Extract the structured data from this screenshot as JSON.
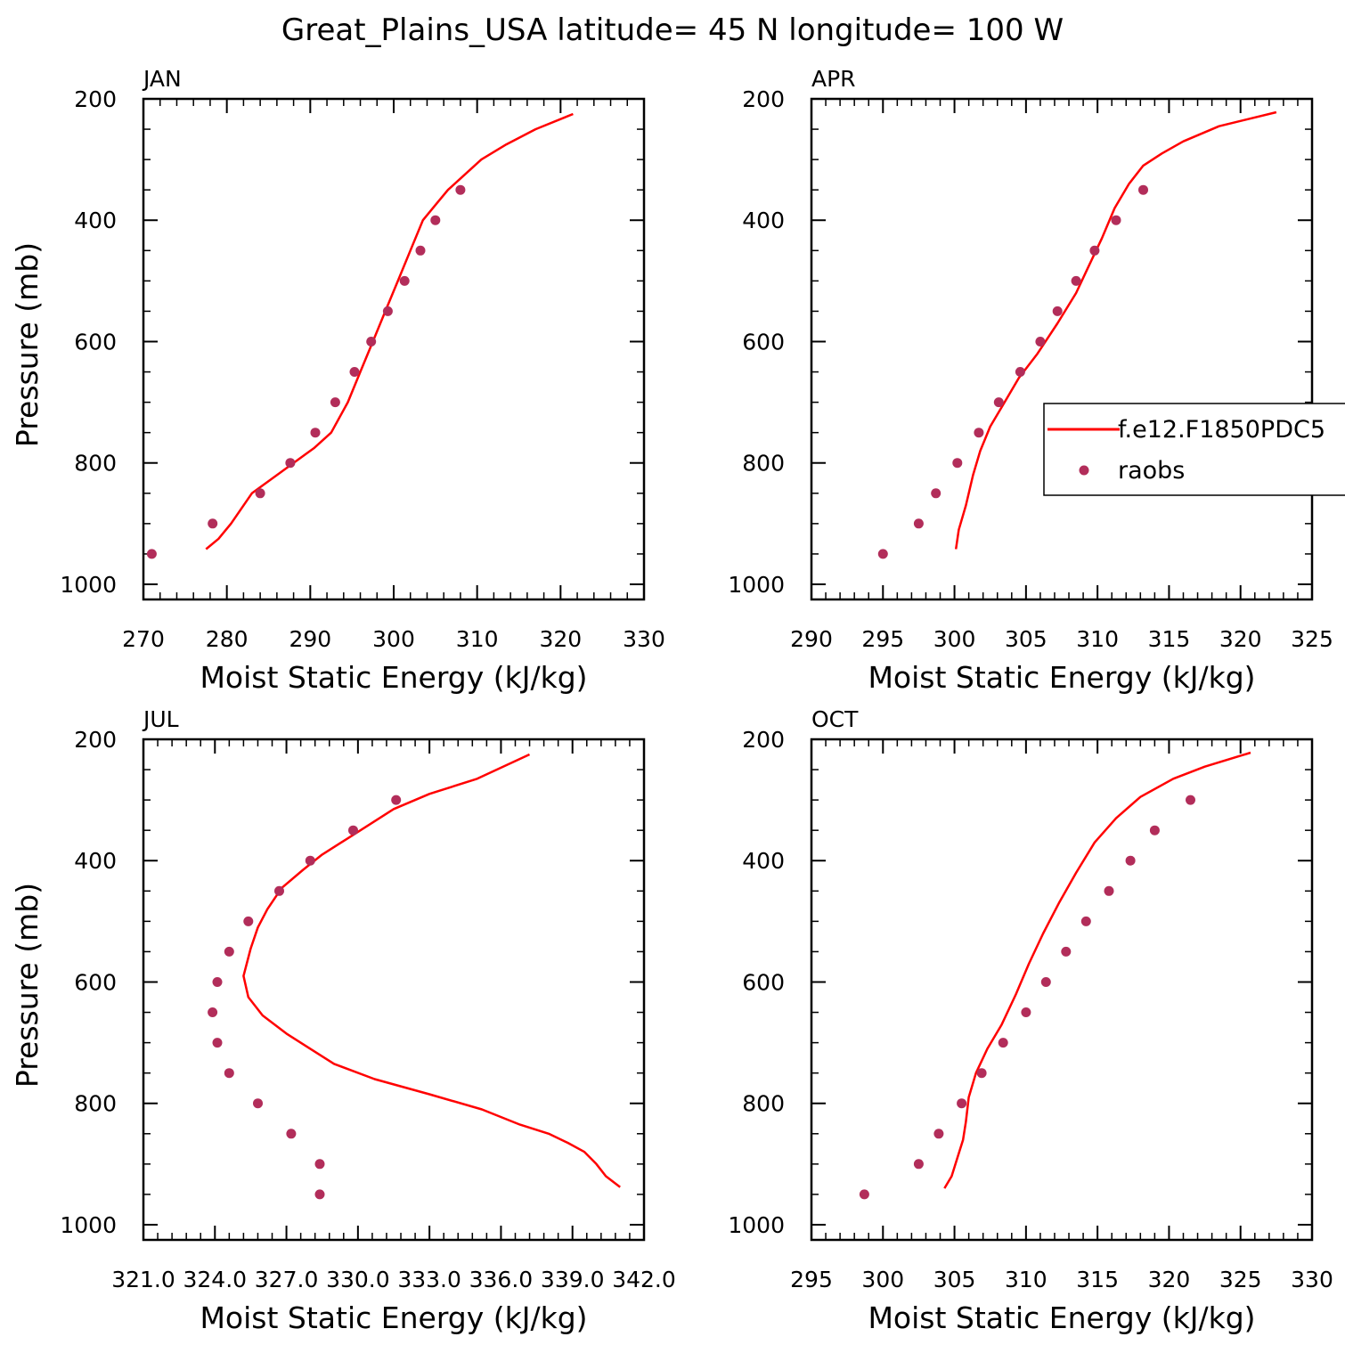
{
  "title": "Great_Plains_USA  latitude= 45 N longitude= 100 W",
  "colors": {
    "model": "#ff0000",
    "obs": "#b22d5a",
    "axis": "#000000"
  },
  "legend": {
    "model_label": "f.e12.F1850PDC5",
    "obs_label": "raobs",
    "placement": "inside APR panel, right side, clipped at figure edge"
  },
  "chart_data": [
    {
      "type": "line",
      "panel_title": "JAN",
      "xlabel": "Moist Static Energy (kJ/kg)",
      "ylabel": "Pressure (mb)",
      "xlim": [
        270,
        330
      ],
      "ylim": [
        1025,
        200
      ],
      "xticks": [
        270,
        280,
        290,
        300,
        310,
        320,
        330
      ],
      "xtick_labels": [
        "270",
        "280",
        "290",
        "300",
        "310",
        "320",
        "330"
      ],
      "yticks": [
        200,
        400,
        600,
        800,
        1000
      ],
      "ytick_labels": [
        "200",
        "400",
        "600",
        "800",
        "1000"
      ],
      "series": [
        {
          "name": "f.e12.F1850PDC5",
          "style": "line",
          "x": [
            277.5,
            279.0,
            280.5,
            283.0,
            285.5,
            288.0,
            290.5,
            292.5,
            294.5,
            296.0,
            297.5,
            299.0,
            300.5,
            302.0,
            303.5,
            305.0,
            306.5,
            308.5,
            310.5,
            313.5,
            317.0,
            321.5
          ],
          "y": [
            942,
            925,
            900,
            850,
            825,
            800,
            775,
            750,
            700,
            650,
            600,
            550,
            500,
            450,
            400,
            375,
            350,
            325,
            300,
            275,
            250,
            225
          ]
        },
        {
          "name": "raobs",
          "style": "markers",
          "x": [
            271.0,
            278.3,
            284.0,
            287.6,
            290.6,
            293.0,
            295.3,
            297.3,
            299.3,
            301.3,
            303.2,
            305.0,
            308.0
          ],
          "y": [
            950,
            900,
            850,
            800,
            750,
            700,
            650,
            600,
            550,
            500,
            450,
            400,
            350
          ]
        }
      ]
    },
    {
      "type": "line",
      "panel_title": "APR",
      "xlabel": "Moist Static Energy (kJ/kg)",
      "ylabel": "",
      "xlim": [
        290,
        325
      ],
      "ylim": [
        1025,
        200
      ],
      "xticks": [
        290,
        295,
        300,
        305,
        310,
        315,
        320,
        325
      ],
      "xtick_labels": [
        "290",
        "295",
        "300",
        "305",
        "310",
        "315",
        "320",
        "325"
      ],
      "yticks": [
        200,
        400,
        600,
        800,
        1000
      ],
      "ytick_labels": [
        "200",
        "400",
        "600",
        "800",
        "1000"
      ],
      "series": [
        {
          "name": "f.e12.F1850PDC5",
          "style": "line",
          "x": [
            300.1,
            300.3,
            300.8,
            301.3,
            301.8,
            302.5,
            303.5,
            304.5,
            305.8,
            307.2,
            308.5,
            309.3,
            310.3,
            311.2,
            312.2,
            313.2,
            314.5,
            316.0,
            318.5,
            322.5
          ],
          "y": [
            942,
            910,
            870,
            820,
            780,
            740,
            700,
            660,
            620,
            570,
            520,
            480,
            430,
            380,
            340,
            310,
            290,
            270,
            245,
            222
          ]
        },
        {
          "name": "raobs",
          "style": "markers",
          "x": [
            295.0,
            297.5,
            298.7,
            300.2,
            301.7,
            303.1,
            304.6,
            306.0,
            307.2,
            308.5,
            309.8,
            311.3,
            313.2
          ],
          "y": [
            950,
            900,
            850,
            800,
            750,
            700,
            650,
            600,
            550,
            500,
            450,
            400,
            350
          ]
        }
      ]
    },
    {
      "type": "line",
      "panel_title": "JUL",
      "xlabel": "Moist Static Energy (kJ/kg)",
      "ylabel": "Pressure (mb)",
      "xlim": [
        321.0,
        342.0
      ],
      "ylim": [
        1025,
        200
      ],
      "xticks": [
        321.0,
        324.0,
        327.0,
        330.0,
        333.0,
        336.0,
        339.0,
        342.0
      ],
      "xtick_labels": [
        "321.0",
        "324.0",
        "327.0",
        "330.0",
        "333.0",
        "336.0",
        "339.0",
        "342.0"
      ],
      "yticks": [
        200,
        400,
        600,
        800,
        1000
      ],
      "ytick_labels": [
        "200",
        "400",
        "600",
        "800",
        "1000"
      ],
      "series": [
        {
          "name": "f.e12.F1850PDC5",
          "style": "line",
          "x": [
            341.0,
            340.4,
            340.0,
            339.5,
            338.8,
            338.0,
            336.8,
            335.2,
            333.0,
            330.7,
            329.0,
            328.0,
            327.0,
            326.0,
            325.4,
            325.2,
            325.5,
            325.8,
            326.2,
            326.8,
            327.7,
            328.5,
            329.5,
            330.5,
            331.5,
            333.0,
            335.0,
            337.2
          ],
          "y": [
            938,
            920,
            900,
            880,
            865,
            850,
            835,
            810,
            785,
            760,
            735,
            710,
            685,
            655,
            625,
            590,
            545,
            510,
            480,
            445,
            415,
            390,
            365,
            340,
            315,
            290,
            265,
            225
          ]
        },
        {
          "name": "raobs",
          "style": "markers",
          "x": [
            328.4,
            328.4,
            327.2,
            325.8,
            324.6,
            324.1,
            323.9,
            324.1,
            324.6,
            325.4,
            326.7,
            328.0,
            329.8,
            331.6
          ],
          "y": [
            950,
            900,
            850,
            800,
            750,
            700,
            650,
            600,
            550,
            500,
            450,
            400,
            350,
            300
          ]
        }
      ]
    },
    {
      "type": "line",
      "panel_title": "OCT",
      "xlabel": "Moist Static Energy (kJ/kg)",
      "ylabel": "",
      "xlim": [
        295,
        330
      ],
      "ylim": [
        1025,
        200
      ],
      "xticks": [
        295,
        300,
        305,
        310,
        315,
        320,
        325,
        330
      ],
      "xtick_labels": [
        "295",
        "300",
        "305",
        "310",
        "315",
        "320",
        "325",
        "330"
      ],
      "yticks": [
        200,
        400,
        600,
        800,
        1000
      ],
      "ytick_labels": [
        "200",
        "400",
        "600",
        "800",
        "1000"
      ],
      "series": [
        {
          "name": "f.e12.F1850PDC5",
          "style": "line",
          "x": [
            304.3,
            304.8,
            305.2,
            305.6,
            305.8,
            306.0,
            306.5,
            307.3,
            308.3,
            309.3,
            310.2,
            311.2,
            312.3,
            313.5,
            314.8,
            316.3,
            318.0,
            320.3,
            322.5,
            325.7
          ],
          "y": [
            940,
            920,
            890,
            860,
            830,
            790,
            750,
            710,
            670,
            620,
            570,
            520,
            470,
            420,
            370,
            330,
            295,
            265,
            245,
            222
          ]
        },
        {
          "name": "raobs",
          "style": "markers",
          "x": [
            298.7,
            302.5,
            303.9,
            305.5,
            306.9,
            308.4,
            310.0,
            311.4,
            312.8,
            314.2,
            315.8,
            317.3,
            319.0,
            321.5
          ],
          "y": [
            950,
            900,
            850,
            800,
            750,
            700,
            650,
            600,
            550,
            500,
            450,
            400,
            350,
            300
          ]
        }
      ]
    }
  ]
}
